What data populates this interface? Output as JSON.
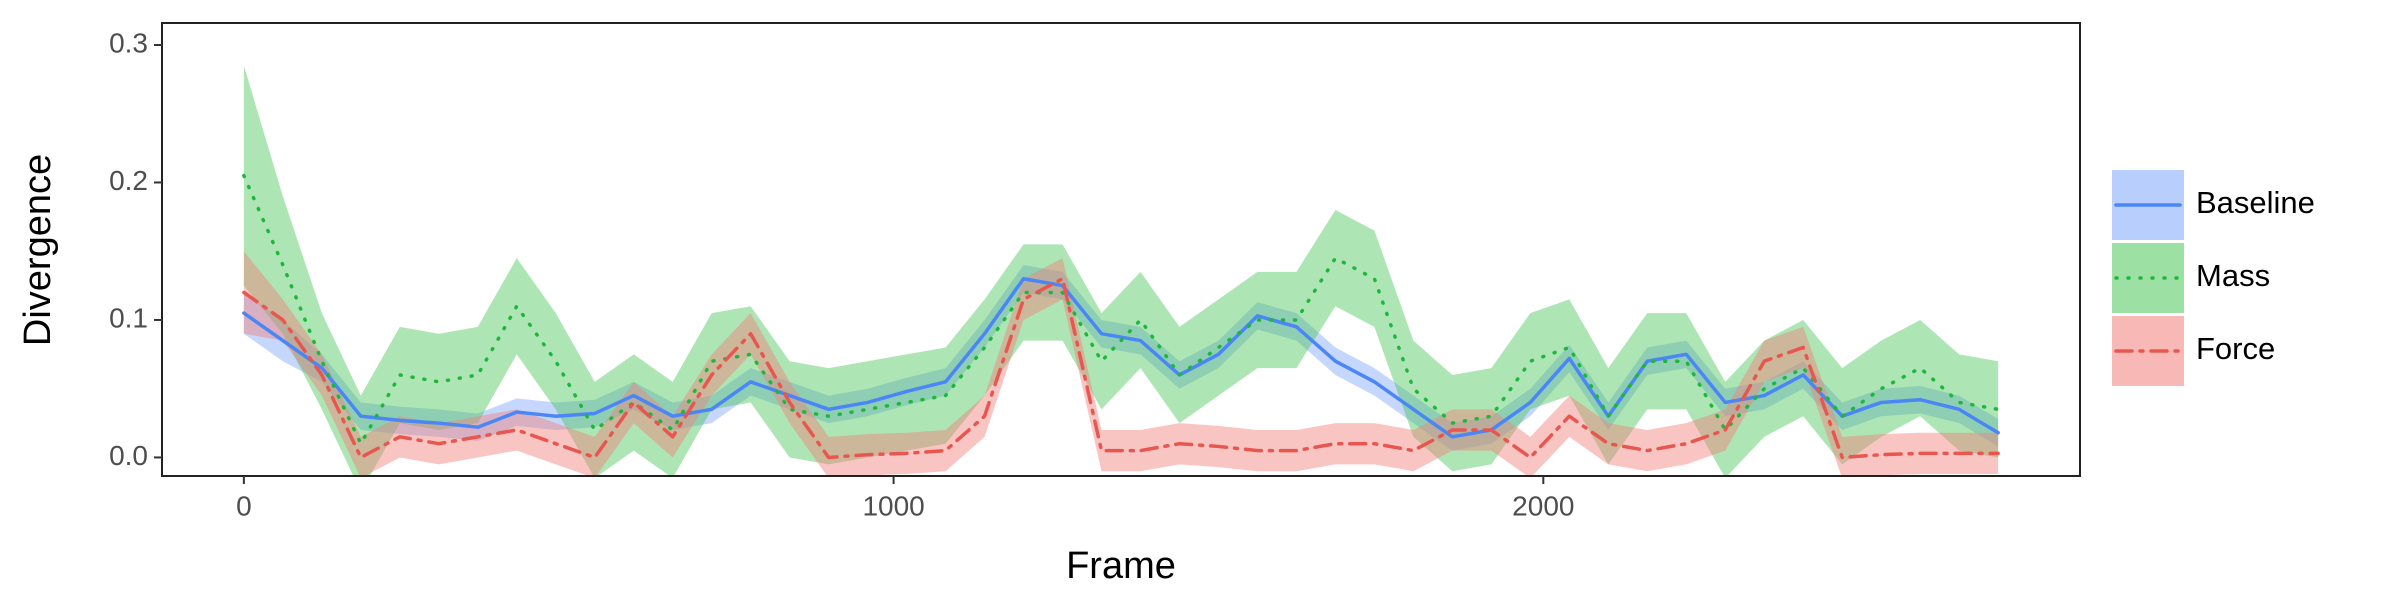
{
  "chart_data": {
    "type": "line",
    "xlabel": "Frame",
    "ylabel": "Divergence",
    "x": [
      0,
      60,
      120,
      180,
      240,
      300,
      360,
      420,
      480,
      540,
      600,
      660,
      720,
      780,
      840,
      900,
      960,
      1020,
      1080,
      1140,
      1200,
      1260,
      1320,
      1380,
      1440,
      1500,
      1560,
      1620,
      1680,
      1740,
      1800,
      1860,
      1920,
      1980,
      2040,
      2100,
      2160,
      2220,
      2280,
      2340,
      2400,
      2460,
      2520,
      2580,
      2640,
      2700
    ],
    "xlim": [
      -126,
      2826
    ],
    "xticks": [
      0,
      1000,
      2000
    ],
    "ylim": [
      -0.0135,
      0.316
    ],
    "yticks": [
      {
        "value": 0,
        "label": "0.0"
      },
      0.1,
      0.2,
      0.3
    ],
    "grid": false,
    "legend": "right",
    "series": [
      {
        "name": "Baseline",
        "color": "#4a86f5",
        "band_color": "#7ea6fb",
        "linestyle": "solid",
        "values": [
          0.105,
          0.085,
          0.065,
          0.03,
          0.027,
          0.025,
          0.022,
          0.033,
          0.03,
          0.032,
          0.045,
          0.03,
          0.035,
          0.055,
          0.045,
          0.035,
          0.04,
          0.048,
          0.055,
          0.09,
          0.13,
          0.125,
          0.09,
          0.085,
          0.06,
          0.075,
          0.103,
          0.095,
          0.07,
          0.055,
          0.035,
          0.015,
          0.02,
          0.04,
          0.072,
          0.03,
          0.07,
          0.075,
          0.04,
          0.045,
          0.06,
          0.03,
          0.04,
          0.042,
          0.035,
          0.018
        ],
        "lower": [
          0.09,
          0.07,
          0.055,
          0.02,
          0.017,
          0.015,
          0.012,
          0.023,
          0.02,
          0.022,
          0.035,
          0.02,
          0.025,
          0.045,
          0.035,
          0.025,
          0.03,
          0.038,
          0.045,
          0.08,
          0.12,
          0.115,
          0.08,
          0.075,
          0.05,
          0.065,
          0.093,
          0.085,
          0.06,
          0.045,
          0.025,
          0.005,
          0.01,
          0.03,
          0.062,
          0.02,
          0.06,
          0.065,
          0.03,
          0.035,
          0.05,
          0.02,
          0.03,
          0.032,
          0.025,
          0.008
        ],
        "upper": [
          0.12,
          0.1,
          0.075,
          0.04,
          0.037,
          0.035,
          0.032,
          0.043,
          0.04,
          0.042,
          0.055,
          0.04,
          0.045,
          0.065,
          0.055,
          0.045,
          0.05,
          0.058,
          0.065,
          0.1,
          0.14,
          0.135,
          0.1,
          0.095,
          0.07,
          0.085,
          0.113,
          0.105,
          0.08,
          0.065,
          0.045,
          0.025,
          0.03,
          0.05,
          0.082,
          0.04,
          0.08,
          0.085,
          0.05,
          0.055,
          0.07,
          0.04,
          0.05,
          0.052,
          0.045,
          0.028
        ]
      },
      {
        "name": "Mass",
        "color": "#1db83b",
        "band_color": "#4cc65a",
        "linestyle": "dotted",
        "values": [
          0.205,
          0.14,
          0.07,
          0.01,
          0.06,
          0.055,
          0.06,
          0.11,
          0.07,
          0.02,
          0.04,
          0.02,
          0.07,
          0.075,
          0.035,
          0.03,
          0.035,
          0.04,
          0.045,
          0.08,
          0.12,
          0.12,
          0.07,
          0.1,
          0.06,
          0.08,
          0.1,
          0.1,
          0.145,
          0.13,
          0.05,
          0.025,
          0.03,
          0.07,
          0.08,
          0.03,
          0.07,
          0.07,
          0.02,
          0.05,
          0.065,
          0.03,
          0.05,
          0.065,
          0.04,
          0.035
        ],
        "lower": [
          0.125,
          0.09,
          0.035,
          -0.025,
          0.025,
          0.02,
          0.025,
          0.075,
          0.035,
          -0.015,
          0.005,
          -0.015,
          0.035,
          0.04,
          0,
          -0.005,
          0,
          0.005,
          0.01,
          0.045,
          0.085,
          0.085,
          0.035,
          0.065,
          0.025,
          0.045,
          0.065,
          0.065,
          0.11,
          0.095,
          0.015,
          -0.01,
          -0.005,
          0.035,
          0.045,
          -0.005,
          0.035,
          0.035,
          -0.015,
          0.015,
          0.03,
          -0.005,
          0.015,
          0.03,
          0.005,
          0
        ],
        "upper": [
          0.285,
          0.19,
          0.105,
          0.045,
          0.095,
          0.09,
          0.095,
          0.145,
          0.105,
          0.055,
          0.075,
          0.055,
          0.105,
          0.11,
          0.07,
          0.065,
          0.07,
          0.075,
          0.08,
          0.115,
          0.155,
          0.155,
          0.105,
          0.135,
          0.095,
          0.115,
          0.135,
          0.135,
          0.18,
          0.165,
          0.085,
          0.06,
          0.065,
          0.105,
          0.115,
          0.065,
          0.105,
          0.105,
          0.055,
          0.085,
          0.1,
          0.065,
          0.085,
          0.1,
          0.075,
          0.07
        ]
      },
      {
        "name": "Force",
        "color": "#e8574f",
        "band_color": "#f27f7a",
        "linestyle": "dashdot",
        "values": [
          0.12,
          0.1,
          0.06,
          0,
          0.015,
          0.01,
          0.015,
          0.02,
          0.01,
          0,
          0.04,
          0.015,
          0.06,
          0.09,
          0.04,
          0,
          0.002,
          0.003,
          0.005,
          0.03,
          0.115,
          0.13,
          0.005,
          0.005,
          0.01,
          0.008,
          0.005,
          0.005,
          0.01,
          0.01,
          0.005,
          0.02,
          0.02,
          0,
          0.03,
          0.01,
          0.005,
          0.01,
          0.02,
          0.07,
          0.08,
          0,
          0.002,
          0.003,
          0.003,
          0.003
        ],
        "lower": [
          0.09,
          0.085,
          0.045,
          -0.015,
          0,
          -0.005,
          0,
          0.005,
          -0.005,
          -0.015,
          0.025,
          0,
          0.045,
          0.075,
          0.025,
          -0.015,
          -0.013,
          -0.012,
          -0.01,
          0.015,
          0.1,
          0.115,
          -0.01,
          -0.01,
          -0.005,
          -0.007,
          -0.01,
          -0.01,
          -0.005,
          -0.005,
          -0.01,
          0.005,
          0.005,
          -0.015,
          0.015,
          -0.005,
          -0.01,
          -0.005,
          0.005,
          0.055,
          0.065,
          -0.015,
          -0.013,
          -0.012,
          -0.012,
          -0.012
        ],
        "upper": [
          0.15,
          0.115,
          0.075,
          0.015,
          0.03,
          0.025,
          0.03,
          0.035,
          0.025,
          0.015,
          0.055,
          0.03,
          0.075,
          0.105,
          0.055,
          0.015,
          0.017,
          0.018,
          0.02,
          0.045,
          0.13,
          0.145,
          0.02,
          0.02,
          0.025,
          0.023,
          0.02,
          0.02,
          0.025,
          0.025,
          0.02,
          0.035,
          0.035,
          0.015,
          0.045,
          0.025,
          0.02,
          0.025,
          0.035,
          0.085,
          0.095,
          0.015,
          0.017,
          0.018,
          0.018,
          0.018
        ]
      }
    ]
  }
}
